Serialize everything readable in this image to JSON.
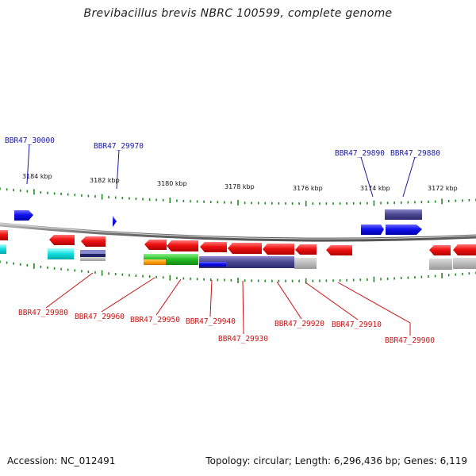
{
  "title": "Brevibacillus brevis NBRC 100599, complete genome",
  "footer": {
    "accession": "Accession: NC_012491",
    "topology": "Topology: circular; Length: 6,296,436 bp; Genes: 6,119"
  },
  "scale_labels": [
    "3184 kbp",
    "3182 kbp",
    "3180 kbp",
    "3178 kbp",
    "3176 kbp",
    "3174 kbp",
    "3172 kbp"
  ],
  "labels_top": [
    "BBR47_30000",
    "BBR47_29970",
    "BBR47_29890",
    "BBR47_29880"
  ],
  "labels_bottom": [
    "BBR47_29980",
    "BBR47_29960",
    "BBR47_29950",
    "BBR47_29940",
    "BBR47_29930",
    "BBR47_29920",
    "BBR47_29910",
    "BBR47_29900"
  ],
  "colors": {
    "backbone": "#8a8a8a",
    "forward_gene": "#1010ee",
    "reverse_gene": "#ee1111",
    "tick": "#228822",
    "label_top": "#1a1aa0",
    "label_bottom": "#cc1111"
  }
}
